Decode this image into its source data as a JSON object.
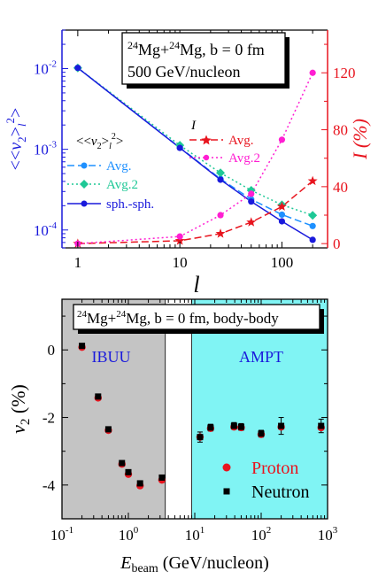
{
  "chart_data": [
    {
      "type": "line",
      "xscale": "log",
      "xlim": [
        0.7,
        280
      ],
      "xticks": [
        1,
        10,
        100
      ],
      "xlabel": "l",
      "left_axis": {
        "scale": "log",
        "ylim": [
          6e-05,
          0.03
        ],
        "ticks": [
          {
            "value": 0.0001,
            "base": "10",
            "exp": "-4"
          },
          {
            "value": 0.001,
            "base": "10",
            "exp": "-3"
          },
          {
            "value": 0.01,
            "base": "10",
            "exp": "-2"
          }
        ],
        "ylabel": "<<v2>l2>",
        "color": "#1a1adc"
      },
      "right_axis": {
        "scale": "linear",
        "ylim": [
          -3,
          150
        ],
        "ticks": [
          0,
          40,
          80,
          120
        ],
        "ylabel": "I (%)",
        "color": "#e8141e"
      },
      "annotation": {
        "line1_sup1": "24",
        "line1_a": "Mg+",
        "line1_sup2": "24",
        "line1_b": "Mg, b = 0 fm",
        "line2": "500 GeV/nucleon"
      },
      "legend_left": {
        "title": "<<v2>l2>",
        "items": [
          "Avg.",
          "Avg.2",
          "sph.-sph."
        ]
      },
      "legend_right": {
        "title": "I",
        "items": [
          "Avg.",
          "Avg.2"
        ]
      },
      "series": [
        {
          "name": "Avg.",
          "axis": "left",
          "color": "#1e90ff",
          "marker": "circle",
          "dash": "8,4",
          "x": [
            1,
            10,
            25,
            50,
            100,
            200
          ],
          "y": [
            0.0102,
            0.00105,
            0.00043,
            0.00024,
            0.000155,
            0.000112
          ]
        },
        {
          "name": "Avg.2",
          "axis": "left",
          "color": "#1ec896",
          "marker": "diamond",
          "dash": "2,3",
          "x": [
            1,
            10,
            25,
            50,
            100,
            200
          ],
          "y": [
            0.0102,
            0.00112,
            0.00051,
            0.00031,
            0.000205,
            0.000152
          ]
        },
        {
          "name": "sph.-sph.",
          "axis": "left",
          "color": "#1a1adc",
          "marker": "circle",
          "dash": "",
          "x": [
            1,
            10,
            25,
            50,
            100,
            200
          ],
          "y": [
            0.0102,
            0.00104,
            0.00042,
            0.000225,
            0.000128,
            7.55e-05
          ]
        },
        {
          "name": "Avg.",
          "axis": "right",
          "color": "#e8141e",
          "marker": "star",
          "dash": "8,4",
          "x": [
            1,
            10,
            25,
            50,
            100,
            200
          ],
          "y": [
            0,
            2,
            7,
            15,
            26,
            44
          ]
        },
        {
          "name": "Avg.2",
          "axis": "right",
          "color": "#ff1ed2",
          "marker": "circle",
          "dash": "2,3",
          "x": [
            1,
            10,
            25,
            50,
            100,
            200
          ],
          "y": [
            0,
            5,
            20,
            35,
            73,
            120
          ]
        }
      ]
    },
    {
      "type": "scatter",
      "xscale": "log",
      "xlim": [
        0.1,
        1000
      ],
      "xticks": [
        {
          "value": 0.1,
          "base": "10",
          "exp": "-1"
        },
        {
          "value": 1,
          "base": "10",
          "exp": "0"
        },
        {
          "value": 10,
          "base": "10",
          "exp": "1"
        },
        {
          "value": 100,
          "base": "10",
          "exp": "2"
        },
        {
          "value": 1000,
          "base": "10",
          "exp": "3"
        }
      ],
      "xlabel_main": "E",
      "xlabel_sub": "beam",
      "xlabel_rest": " (GeV/nucleon)",
      "ylim": [
        -5,
        1.5
      ],
      "yticks": [
        0,
        -2,
        -4
      ],
      "ylabel_main": "v",
      "ylabel_sub": "2",
      "ylabel_rest": " (%)",
      "annotation": {
        "sup1": "24",
        "a": "Mg+",
        "sup2": "24",
        "b": "Mg, b = 0 fm,  body-body"
      },
      "regions": [
        {
          "label": "IBUU",
          "x0": 0.1,
          "x1": 3.6,
          "color": "#c4c4c4",
          "label_color": "#1a1adc"
        },
        {
          "label": "AMPT",
          "x0": 9,
          "x1": 1000,
          "color": "#80f4f4",
          "label_color": "#1a1adc"
        }
      ],
      "legend": [
        "Proton",
        "Neutron"
      ],
      "series": [
        {
          "name": "Proton",
          "color": "#e8141e",
          "marker": "circle",
          "x": [
            0.2,
            0.35,
            0.5,
            0.8,
            1.0,
            1.5,
            3.2,
            12,
            17.3,
            39,
            50,
            100,
            200,
            800
          ],
          "y": [
            0.08,
            -1.42,
            -2.38,
            -3.38,
            -3.68,
            -4.02,
            -3.85,
            -2.58,
            -2.32,
            -2.28,
            -2.3,
            -2.5,
            -2.28,
            -2.3
          ]
        },
        {
          "name": "Neutron",
          "color": "#000000",
          "marker": "square",
          "x": [
            0.2,
            0.35,
            0.5,
            0.8,
            1.0,
            1.5,
            3.2,
            12,
            17.3,
            39,
            50,
            100,
            200,
            800
          ],
          "y": [
            0.12,
            -1.38,
            -2.35,
            -3.35,
            -3.62,
            -3.95,
            -3.78,
            -2.58,
            -2.3,
            -2.25,
            -2.28,
            -2.48,
            -2.25,
            -2.25
          ],
          "err": [
            0.05,
            0.05,
            0.05,
            0.05,
            0.05,
            0.05,
            0.05,
            0.15,
            0.1,
            0.1,
            0.1,
            0.1,
            0.25,
            0.2
          ]
        }
      ]
    }
  ]
}
